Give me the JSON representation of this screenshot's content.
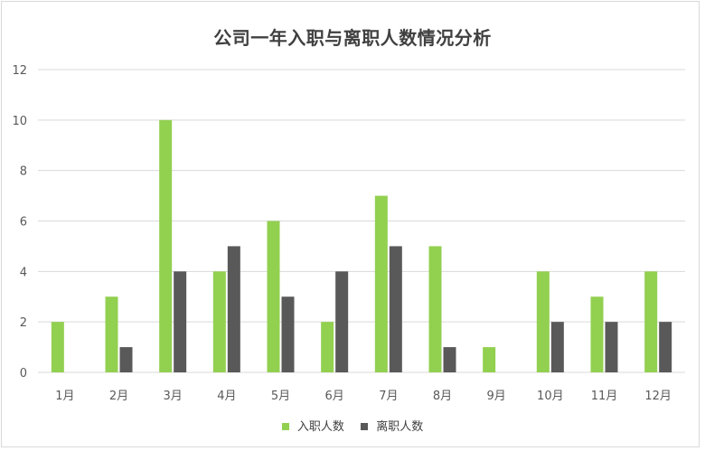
{
  "chart_data": {
    "type": "bar",
    "title": "公司一年入职与离职人数情况分析",
    "categories": [
      "1月",
      "2月",
      "3月",
      "4月",
      "5月",
      "6月",
      "7月",
      "8月",
      "9月",
      "10月",
      "11月",
      "12月"
    ],
    "series": [
      {
        "name": "入职人数",
        "color": "#92d050",
        "values": [
          2,
          3,
          10,
          4,
          6,
          2,
          7,
          5,
          1,
          4,
          3,
          4
        ]
      },
      {
        "name": "离职人数",
        "color": "#595959",
        "values": [
          0,
          1,
          4,
          5,
          3,
          4,
          5,
          1,
          0,
          2,
          2,
          2
        ]
      }
    ],
    "ylim": [
      0,
      12
    ],
    "yticks": [
      0,
      2,
      4,
      6,
      8,
      10,
      12
    ],
    "grid": true,
    "legend": "bottom"
  }
}
